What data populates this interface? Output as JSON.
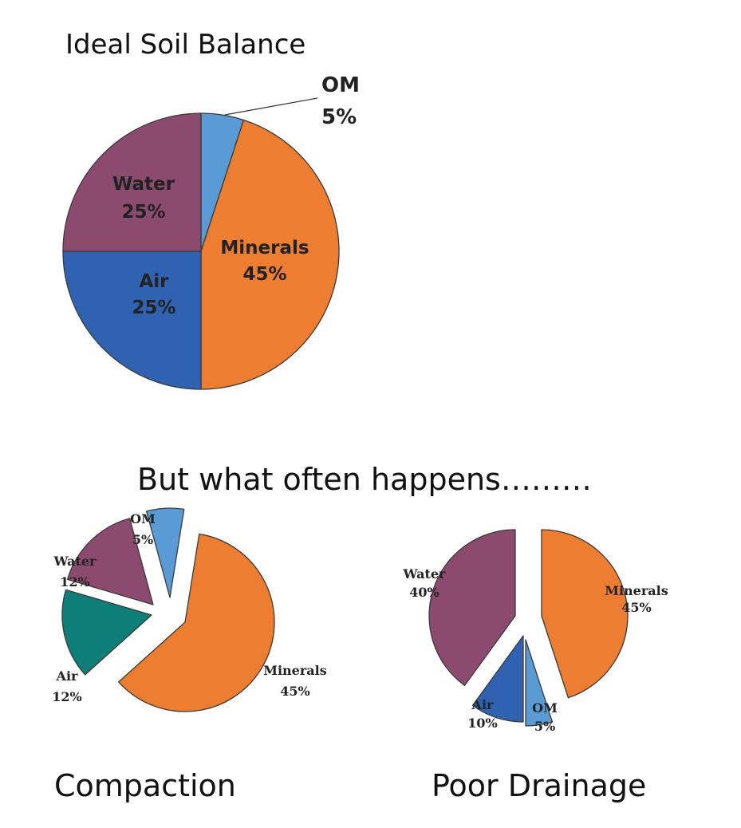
{
  "colors": {
    "om": "#5b9bd5",
    "minerals": "#ed7d31",
    "air": "#2f62b0",
    "water": "#8c4a6e",
    "air_compaction": "#0e7f78",
    "outline": "#3a3a3a"
  },
  "texts": {
    "title": "Ideal Soil Balance",
    "subtitle": "But what often happens………",
    "caption_compaction": "Compaction",
    "caption_drainage": "Poor Drainage"
  },
  "chart_data": [
    {
      "type": "pie",
      "title": "Ideal Soil Balance",
      "slices": [
        {
          "name": "OM",
          "value": 5,
          "label": "5%",
          "color": "#5b9bd5"
        },
        {
          "name": "Minerals",
          "value": 45,
          "label": "45%",
          "color": "#ed7d31"
        },
        {
          "name": "Air",
          "value": 25,
          "label": "25%",
          "color": "#2f62b0"
        },
        {
          "name": "Water",
          "value": 25,
          "label": "25%",
          "color": "#8c4a6e"
        }
      ]
    },
    {
      "type": "pie",
      "title": "Compaction",
      "exploded": true,
      "slices": [
        {
          "name": "OM",
          "value": 5,
          "label": "5%",
          "color": "#5b9bd5"
        },
        {
          "name": "Minerals",
          "value": 45,
          "label": "45%",
          "color": "#ed7d31"
        },
        {
          "name": "Air",
          "value": 12,
          "label": "12%",
          "color": "#0e7f78"
        },
        {
          "name": "Water",
          "value": 12,
          "label": "12%",
          "color": "#8c4a6e"
        }
      ]
    },
    {
      "type": "pie",
      "title": "Poor Drainage",
      "exploded": true,
      "slices": [
        {
          "name": "Minerals",
          "value": 45,
          "label": "45%",
          "color": "#ed7d31"
        },
        {
          "name": "OM",
          "value": 5,
          "label": "5%",
          "color": "#5b9bd5"
        },
        {
          "name": "Air",
          "value": 10,
          "label": "10%",
          "color": "#2f62b0"
        },
        {
          "name": "Water",
          "value": 40,
          "label": "40%",
          "color": "#8c4a6e"
        }
      ]
    }
  ]
}
